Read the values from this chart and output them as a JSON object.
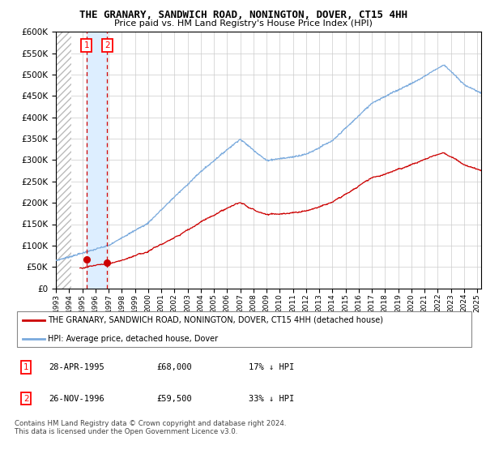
{
  "title": "THE GRANARY, SANDWICH ROAD, NONINGTON, DOVER, CT15 4HH",
  "subtitle": "Price paid vs. HM Land Registry's House Price Index (HPI)",
  "ylim": [
    0,
    600000
  ],
  "yticks": [
    0,
    50000,
    100000,
    150000,
    200000,
    250000,
    300000,
    350000,
    400000,
    450000,
    500000,
    550000,
    600000
  ],
  "sale1_date": 1995.32,
  "sale1_price": 68000,
  "sale2_date": 1996.9,
  "sale2_price": 59500,
  "legend_label_red": "THE GRANARY, SANDWICH ROAD, NONINGTON, DOVER, CT15 4HH (detached house)",
  "legend_label_blue": "HPI: Average price, detached house, Dover",
  "table_rows": [
    [
      "1",
      "28-APR-1995",
      "£68,000",
      "17% ↓ HPI"
    ],
    [
      "2",
      "26-NOV-1996",
      "£59,500",
      "33% ↓ HPI"
    ]
  ],
  "footnote": "Contains HM Land Registry data © Crown copyright and database right 2024.\nThis data is licensed under the Open Government Licence v3.0.",
  "hpi_color": "#7aaadd",
  "price_color": "#cc0000",
  "highlight_color": "#ddeeff",
  "xlim_start": 1993,
  "xlim_end": 2025.3
}
